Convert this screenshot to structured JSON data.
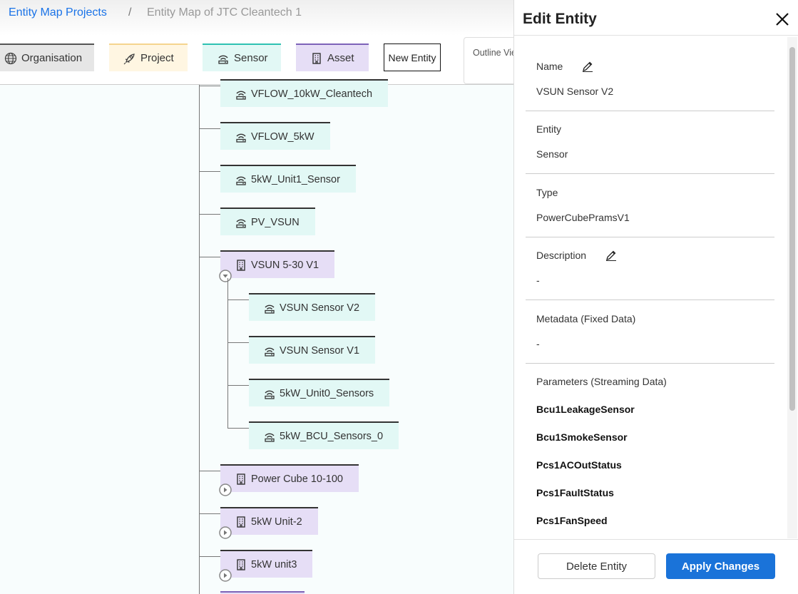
{
  "breadcrumb": {
    "root": "Entity Map Projects",
    "separator": "/",
    "current": "Entity Map of JTC Cleantech 1"
  },
  "toolbar": {
    "legend": [
      "Organisation",
      "Project",
      "Sensor",
      "Asset"
    ],
    "new_entity": "New Entity",
    "view": "Outline View"
  },
  "tree": [
    {
      "label": "VFLOW_10kW_Cleantech",
      "type": "Sensor"
    },
    {
      "label": "VFLOW_5kW",
      "type": "Sensor"
    },
    {
      "label": "5kW_Unit1_Sensor",
      "type": "Sensor"
    },
    {
      "label": "PV_VSUN",
      "type": "Sensor"
    },
    {
      "label": "VSUN 5-30 V1",
      "type": "Asset",
      "expanded": true,
      "children": [
        {
          "label": "VSUN Sensor V2",
          "type": "Sensor"
        },
        {
          "label": "VSUN Sensor V1",
          "type": "Sensor"
        },
        {
          "label": "5kW_Unit0_Sensors",
          "type": "Sensor"
        },
        {
          "label": "5kW_BCU_Sensors_0",
          "type": "Sensor"
        }
      ]
    },
    {
      "label": "Power Cube 10-100",
      "type": "Asset",
      "expanded": false
    },
    {
      "label": "5kW Unit-2",
      "type": "Asset",
      "expanded": false
    },
    {
      "label": "5kW unit3",
      "type": "Asset",
      "expanded": false
    }
  ],
  "panel": {
    "title": "Edit Entity",
    "fields": [
      {
        "label": "Name",
        "value": "VSUN Sensor V2",
        "editable": true
      },
      {
        "label": "Entity",
        "value": "Sensor"
      },
      {
        "label": "Type",
        "value": "PowerCubePramsV1"
      },
      {
        "label": "Description",
        "value": "-",
        "editable": true
      },
      {
        "label": "Metadata (Fixed Data)",
        "value": "-"
      }
    ],
    "parameters_label": "Parameters (Streaming Data)",
    "parameters": [
      "Bcu1LeakageSensor",
      "Bcu1SmokeSensor",
      "Pcs1ACOutStatus",
      "Pcs1FaultStatus",
      "Pcs1FanSpeed"
    ],
    "delete_button": "Delete Entity",
    "apply_button": "Apply Changes"
  }
}
